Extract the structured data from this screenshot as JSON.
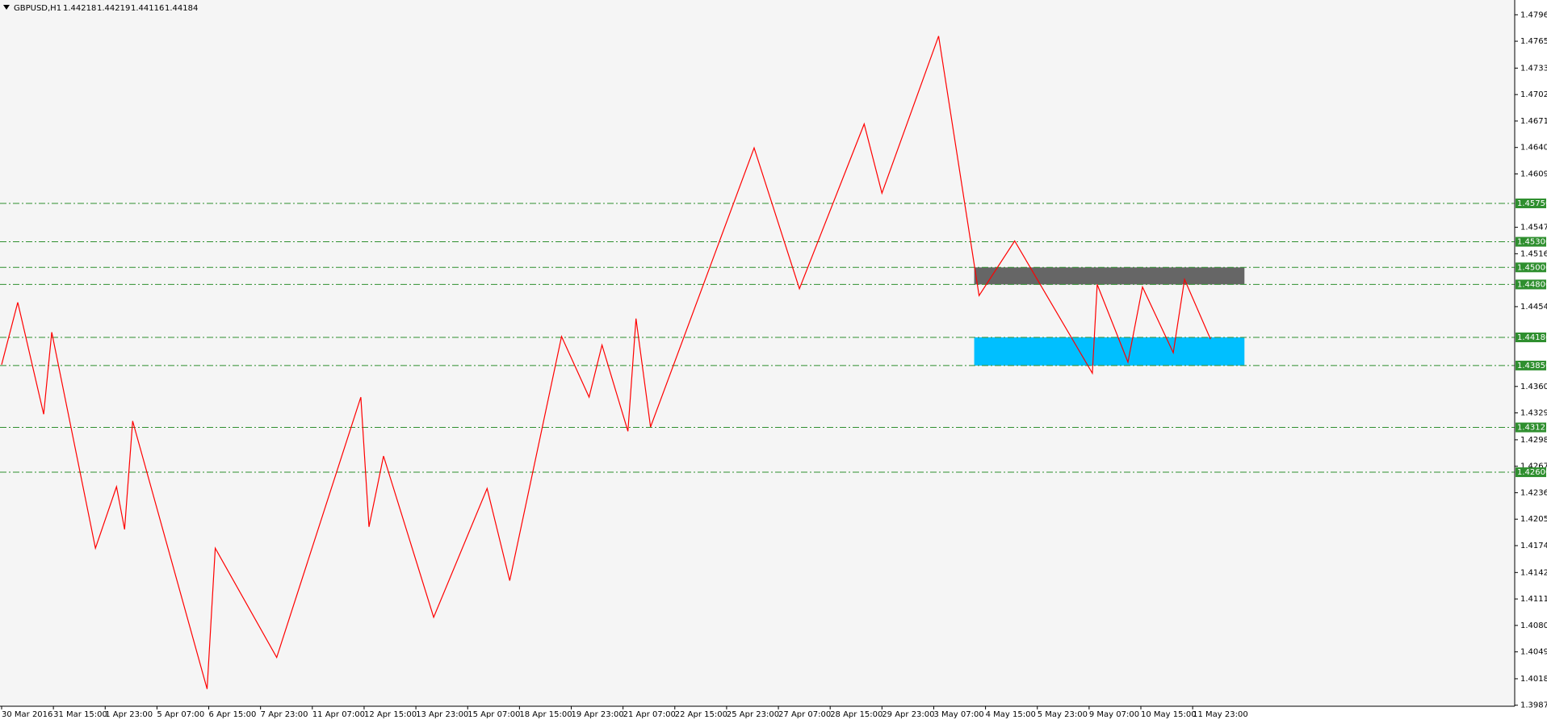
{
  "chart_data": {
    "type": "line",
    "title": "GBPUSD,H1",
    "quote": [
      1.44218,
      1.44219,
      1.44116,
      1.44184
    ],
    "xlim": [
      0,
      935
    ],
    "ylim": [
      1.39858,
      1.48133
    ],
    "xticks": [
      {
        "value": 0,
        "label": "30 Mar 2016"
      },
      {
        "value": 32,
        "label": "31 Mar 15:00"
      },
      {
        "value": 64,
        "label": "1 Apr 23:00"
      },
      {
        "value": 96,
        "label": "5 Apr 07:00"
      },
      {
        "value": 128,
        "label": "6 Apr 15:00"
      },
      {
        "value": 160,
        "label": "7 Apr 23:00"
      },
      {
        "value": 192,
        "label": "11 Apr 07:00"
      },
      {
        "value": 224,
        "label": "12 Apr 15:00"
      },
      {
        "value": 256,
        "label": "13 Apr 23:00"
      },
      {
        "value": 288,
        "label": "15 Apr 07:00"
      },
      {
        "value": 320,
        "label": "18 Apr 15:00"
      },
      {
        "value": 352,
        "label": "19 Apr 23:00"
      },
      {
        "value": 384,
        "label": "21 Apr 07:00"
      },
      {
        "value": 416,
        "label": "22 Apr 15:00"
      },
      {
        "value": 448,
        "label": "25 Apr 23:00"
      },
      {
        "value": 480,
        "label": "27 Apr 07:00"
      },
      {
        "value": 512,
        "label": "28 Apr 15:00"
      },
      {
        "value": 544,
        "label": "29 Apr 23:00"
      },
      {
        "value": 576,
        "label": "3 May 07:00"
      },
      {
        "value": 608,
        "label": "4 May 15:00"
      },
      {
        "value": 640,
        "label": "5 May 23:00"
      },
      {
        "value": 672,
        "label": "9 May 07:00"
      },
      {
        "value": 704,
        "label": "10 May 15:00"
      },
      {
        "value": 736,
        "label": "11 May 23:00"
      }
    ],
    "yticks": [
      {
        "value": 1.4796,
        "label": "1.47960"
      },
      {
        "value": 1.4765,
        "label": "1.47650"
      },
      1.47335,
      1.47025,
      1.46715,
      1.46405,
      1.46095,
      {
        "value": 1.4547,
        "label": "1.45470"
      },
      {
        "value": 1.4516,
        "label": "1.45160"
      },
      {
        "value": 1.4454,
        "label": "1.44540"
      },
      1.43605,
      1.43295,
      {
        "value": 1.4298,
        "label": "1.42980"
      },
      {
        "value": 1.4267,
        "label": "1.42670"
      },
      {
        "value": 1.4236,
        "label": "1.42360"
      },
      {
        "value": 1.4205,
        "label": "1.42050"
      },
      {
        "value": 1.4174,
        "label": "1.41740"
      },
      1.41425,
      1.41115,
      1.40805,
      1.40495,
      {
        "value": 1.4018,
        "label": "1.40180"
      },
      {
        "value": 1.3987,
        "label": "1.39870"
      }
    ],
    "levels": [
      {
        "value": 1.4575,
        "label": "1.45750"
      },
      {
        "value": 1.453,
        "label": "1.45300"
      },
      {
        "value": 1.45,
        "label": "1.45000"
      },
      {
        "value": 1.448,
        "label": "1.44800"
      },
      {
        "value": 1.4418,
        "label": "1.44180"
      },
      {
        "value": 1.4385,
        "label": "1.43850"
      },
      1.43125,
      {
        "value": 1.426,
        "label": "1.42600"
      }
    ],
    "level_color": "#2f8f2f",
    "zones": [
      {
        "x": [
          601,
          768
        ],
        "y": [
          1.448,
          1.45
        ],
        "color": "#666666"
      },
      {
        "x": [
          601,
          768
        ],
        "y": [
          1.4385,
          1.4418
        ],
        "color": "#00bfff"
      }
    ],
    "series": [
      {
        "color": "#ff0000",
        "x": [
          0,
          10,
          26,
          31,
          58,
          71,
          76,
          81,
          127,
          132,
          170,
          222,
          227,
          236,
          267,
          300,
          314,
          346,
          363,
          371,
          387,
          392,
          401,
          465,
          493,
          533,
          544,
          579,
          604,
          626,
          674,
          677,
          696,
          705,
          724,
          731,
          747
        ],
        "values": [
          1.4386,
          1.4459,
          1.4328,
          1.4424,
          1.4171,
          1.4243,
          1.4193,
          1.432,
          1.4006,
          1.4171,
          1.4043,
          1.4348,
          1.4196,
          1.4279,
          1.409,
          1.4241,
          1.4133,
          1.4419,
          1.4348,
          1.4409,
          1.4308,
          1.444,
          1.4313,
          1.464,
          1.4475,
          1.4668,
          1.4587,
          1.4771,
          1.4467,
          1.4531,
          1.4376,
          1.448,
          1.4389,
          1.4477,
          1.44,
          1.4486,
          1.4416
        ]
      }
    ]
  }
}
